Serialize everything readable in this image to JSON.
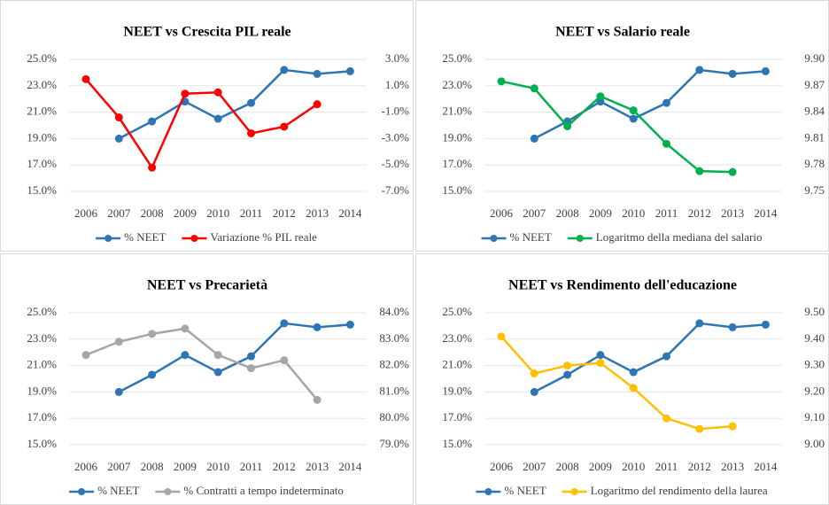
{
  "chart_data": [
    {
      "type": "line",
      "title": "NEET vs Crescita PIL reale",
      "categories": [
        "2006",
        "2007",
        "2008",
        "2009",
        "2010",
        "2011",
        "2012",
        "2013",
        "2014"
      ],
      "series": [
        {
          "name": "% NEET",
          "color": "#2e75b6",
          "values": [
            null,
            19.0,
            20.3,
            21.8,
            20.5,
            21.7,
            24.2,
            23.9,
            24.1
          ]
        },
        {
          "name": "Variazione % PIL reale",
          "color": "#ff0000",
          "axis": "y2",
          "values": [
            1.5,
            -1.4,
            -5.2,
            0.4,
            0.5,
            -2.6,
            -2.1,
            -0.4,
            null
          ]
        }
      ],
      "ylim": [
        15,
        25
      ],
      "yticks": [
        {
          "value": 15,
          "label": "15.0%"
        },
        {
          "value": 17,
          "label": "17.0%"
        },
        {
          "value": 19,
          "label": "19.0%"
        },
        {
          "value": 21,
          "label": "21.0%"
        },
        {
          "value": 23,
          "label": "23.0%"
        },
        {
          "value": 25,
          "label": "25.0%"
        }
      ],
      "y2lim": [
        -7,
        3
      ],
      "y2ticks": [
        {
          "value": -7,
          "label": "-7.0%"
        },
        {
          "value": -5,
          "label": "-5.0%"
        },
        {
          "value": -3,
          "label": "-3.0%"
        },
        {
          "value": -1,
          "label": "-1.0%"
        },
        {
          "value": 1,
          "label": "1.0%"
        },
        {
          "value": 3,
          "label": "3.0%"
        }
      ],
      "grid": true,
      "legend": "bottom"
    },
    {
      "type": "line",
      "title": "NEET vs Salario reale",
      "categories": [
        "2006",
        "2007",
        "2008",
        "2009",
        "2010",
        "2011",
        "2012",
        "2013",
        "2014"
      ],
      "series": [
        {
          "name": "% NEET",
          "color": "#2e75b6",
          "values": [
            null,
            19.0,
            20.3,
            21.8,
            20.5,
            21.7,
            24.2,
            23.9,
            24.1
          ]
        },
        {
          "name": "Logaritmo della mediana del salario",
          "color": "#00b050",
          "axis": "y2",
          "values": [
            9.875,
            9.867,
            9.824,
            9.858,
            9.842,
            9.804,
            9.773,
            9.772,
            null
          ]
        }
      ],
      "ylim": [
        15,
        25
      ],
      "yticks": [
        {
          "value": 15,
          "label": "15.0%"
        },
        {
          "value": 17,
          "label": "17.0%"
        },
        {
          "value": 19,
          "label": "19.0%"
        },
        {
          "value": 21,
          "label": "21.0%"
        },
        {
          "value": 23,
          "label": "23.0%"
        },
        {
          "value": 25,
          "label": "25.0%"
        }
      ],
      "y2lim": [
        9.75,
        9.9
      ],
      "y2ticks": [
        9.75,
        9.78,
        9.81,
        9.84,
        9.87,
        {
          "value": 9.9,
          "label": "9.90"
        }
      ],
      "grid": true,
      "legend": "bottom"
    },
    {
      "type": "line",
      "title": "NEET vs Precarietà",
      "categories": [
        "2006",
        "2007",
        "2008",
        "2009",
        "2010",
        "2011",
        "2012",
        "2013",
        "2014"
      ],
      "series": [
        {
          "name": "% NEET",
          "color": "#2e75b6",
          "values": [
            null,
            19.0,
            20.3,
            21.8,
            20.5,
            21.7,
            24.2,
            23.9,
            24.1
          ]
        },
        {
          "name": "% Contratti a tempo indeterminato",
          "color": "#a6a6a6",
          "axis": "y2",
          "values": [
            82.4,
            82.9,
            83.2,
            83.4,
            82.4,
            81.9,
            82.2,
            80.7,
            null
          ]
        }
      ],
      "ylim": [
        15,
        25
      ],
      "yticks": [
        {
          "value": 15,
          "label": "15.0%"
        },
        {
          "value": 17,
          "label": "17.0%"
        },
        {
          "value": 19,
          "label": "19.0%"
        },
        {
          "value": 21,
          "label": "21.0%"
        },
        {
          "value": 23,
          "label": "23.0%"
        },
        {
          "value": 25,
          "label": "25.0%"
        }
      ],
      "y2lim": [
        79,
        84
      ],
      "y2ticks": [
        {
          "value": 79,
          "label": "79.0%"
        },
        {
          "value": 80,
          "label": "80.0%"
        },
        {
          "value": 81,
          "label": "81.0%"
        },
        {
          "value": 82,
          "label": "82.0%"
        },
        {
          "value": 83,
          "label": "83.0%"
        },
        {
          "value": 84,
          "label": "84.0%"
        }
      ],
      "grid": true,
      "legend": "bottom"
    },
    {
      "type": "line",
      "title": "NEET vs Rendimento dell'educazione",
      "categories": [
        "2006",
        "2007",
        "2008",
        "2009",
        "2010",
        "2011",
        "2012",
        "2013",
        "2014"
      ],
      "series": [
        {
          "name": "% NEET",
          "color": "#2e75b6",
          "values": [
            null,
            19.0,
            20.3,
            21.8,
            20.5,
            21.7,
            24.2,
            23.9,
            24.1
          ]
        },
        {
          "name": "Logaritmo del rendimento della laurea",
          "color": "#ffc000",
          "axis": "y2",
          "values": [
            9.41,
            9.27,
            9.3,
            9.31,
            9.215,
            9.1,
            9.06,
            9.07,
            null
          ]
        }
      ],
      "ylim": [
        15,
        25
      ],
      "yticks": [
        {
          "value": 15,
          "label": "15.0%"
        },
        {
          "value": 17,
          "label": "17.0%"
        },
        {
          "value": 19,
          "label": "19.0%"
        },
        {
          "value": 21,
          "label": "21.0%"
        },
        {
          "value": 23,
          "label": "23.0%"
        },
        {
          "value": 25,
          "label": "25.0%"
        }
      ],
      "y2lim": [
        9.0,
        9.5
      ],
      "y2ticks": [
        {
          "value": 9.0,
          "label": "9.00"
        },
        {
          "value": 9.1,
          "label": "9.10"
        },
        {
          "value": 9.2,
          "label": "9.20"
        },
        {
          "value": 9.3,
          "label": "9.30"
        },
        {
          "value": 9.4,
          "label": "9.40"
        },
        {
          "value": 9.5,
          "label": "9.50"
        }
      ],
      "grid": true,
      "legend": "bottom"
    }
  ]
}
